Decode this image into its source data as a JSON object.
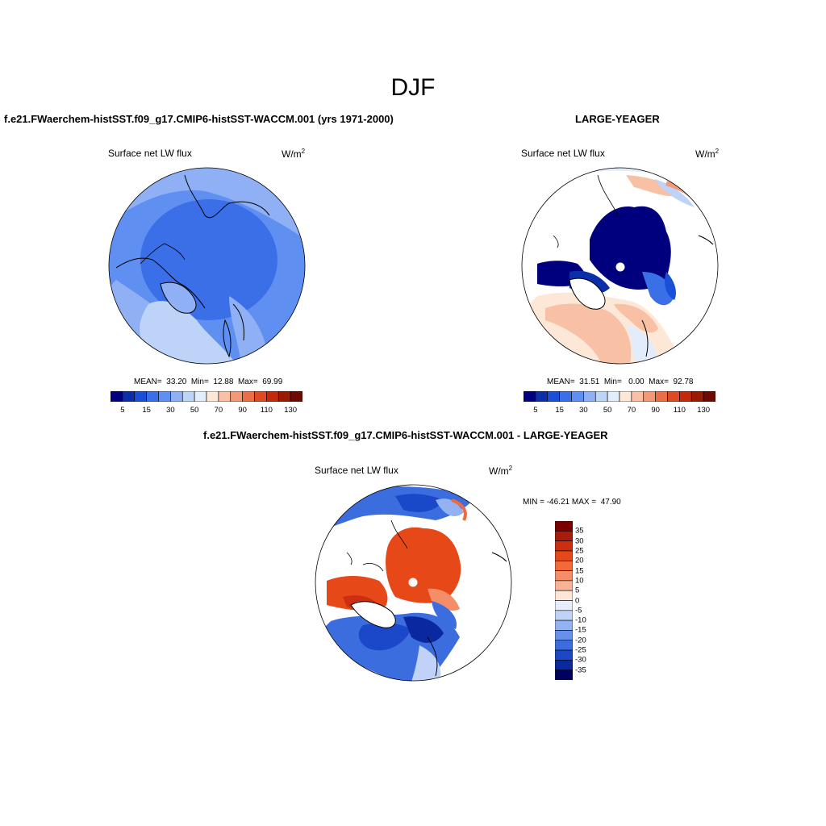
{
  "figure": {
    "title": "DJF",
    "panel_left": {
      "title": "f.e21.FWaerchem-histSST.f09_g17.CMIP6-histSST-WACCM.001 (yrs 1971-2000)",
      "variable": "Surface net LW flux",
      "units": "W/m",
      "units_exp": "2",
      "stats": "MEAN=  33.20  Min=  12.88  Max=  69.99"
    },
    "panel_right": {
      "title": "LARGE-YEAGER",
      "variable": "Surface net LW flux",
      "units": "W/m",
      "units_exp": "2",
      "stats": "MEAN=  31.51  Min=   0.00  Max=  92.78"
    },
    "panel_diff": {
      "title": "f.e21.FWaerchem-histSST.f09_g17.CMIP6-histSST-WACCM.001 - LARGE-YEAGER",
      "variable": "Surface net LW flux",
      "units": "W/m",
      "units_exp": "2",
      "minmax": "MIN = -46.21 MAX =  47.90"
    }
  },
  "chart_data": [
    {
      "type": "heatmap",
      "projection": "north-polar-stereographic",
      "title": "f.e21.FWaerchem-histSST.f09_g17.CMIP6-histSST-WACCM.001 (yrs 1971-2000)",
      "variable": "Surface net LW flux",
      "units": "W/m2",
      "stats": {
        "mean": 33.2,
        "min": 12.88,
        "max": 69.99
      },
      "colorbar": {
        "orientation": "horizontal",
        "levels": [
          5,
          10,
          15,
          20,
          30,
          40,
          50,
          60,
          70,
          80,
          90,
          100,
          110,
          120,
          130
        ],
        "tick_labels": [
          "5",
          "15",
          "30",
          "50",
          "70",
          "90",
          "110",
          "130"
        ],
        "colors": [
          "#00007f",
          "#0a2fa8",
          "#1a4fd8",
          "#3a6fe8",
          "#5f8ff0",
          "#8fb0f4",
          "#bdd3f8",
          "#e2ecfb",
          "#fde8d8",
          "#f8c0a4",
          "#f29a78",
          "#ea6f48",
          "#de4a22",
          "#c22a0a",
          "#9a1a02",
          "#6f0a00"
        ]
      },
      "legend": "bottom"
    },
    {
      "type": "heatmap",
      "projection": "north-polar-stereographic",
      "title": "LARGE-YEAGER",
      "variable": "Surface net LW flux",
      "units": "W/m2",
      "stats": {
        "mean": 31.51,
        "min": 0.0,
        "max": 92.78
      },
      "colorbar": {
        "orientation": "horizontal",
        "levels": [
          5,
          10,
          15,
          20,
          30,
          40,
          50,
          60,
          70,
          80,
          90,
          100,
          110,
          120,
          130
        ],
        "tick_labels": [
          "5",
          "15",
          "30",
          "50",
          "70",
          "90",
          "110",
          "130"
        ],
        "colors": [
          "#00007f",
          "#0a2fa8",
          "#1a4fd8",
          "#3a6fe8",
          "#5f8ff0",
          "#8fb0f4",
          "#bdd3f8",
          "#e2ecfb",
          "#fde8d8",
          "#f8c0a4",
          "#f29a78",
          "#ea6f48",
          "#de4a22",
          "#c22a0a",
          "#9a1a02",
          "#6f0a00"
        ]
      },
      "legend": "bottom"
    },
    {
      "type": "heatmap",
      "projection": "north-polar-stereographic",
      "title": "f.e21.FWaerchem-histSST.f09_g17.CMIP6-histSST-WACCM.001 - LARGE-YEAGER",
      "variable": "Surface net LW flux",
      "units": "W/m2",
      "stats": {
        "min": -46.21,
        "max": 47.9
      },
      "colorbar": {
        "orientation": "vertical",
        "levels": [
          35,
          30,
          25,
          20,
          15,
          10,
          5,
          0,
          -5,
          -10,
          -15,
          -20,
          -25,
          -30,
          -35
        ],
        "tick_labels": [
          "35",
          "30",
          "25",
          "20",
          "15",
          "10",
          "5",
          "0",
          "-5",
          "-10",
          "-15",
          "-20",
          "-25",
          "-30",
          "-35"
        ],
        "colors": [
          "#7a0000",
          "#a81c0c",
          "#cc2e10",
          "#e64818",
          "#f26a3a",
          "#f58d68",
          "#f8b296",
          "#fde6d6",
          "#e6eefc",
          "#c0d2f8",
          "#93b2f2",
          "#6690ea",
          "#3c6ddf",
          "#1a48c8",
          "#0a28a0",
          "#00005f"
        ]
      },
      "legend": "right"
    }
  ]
}
